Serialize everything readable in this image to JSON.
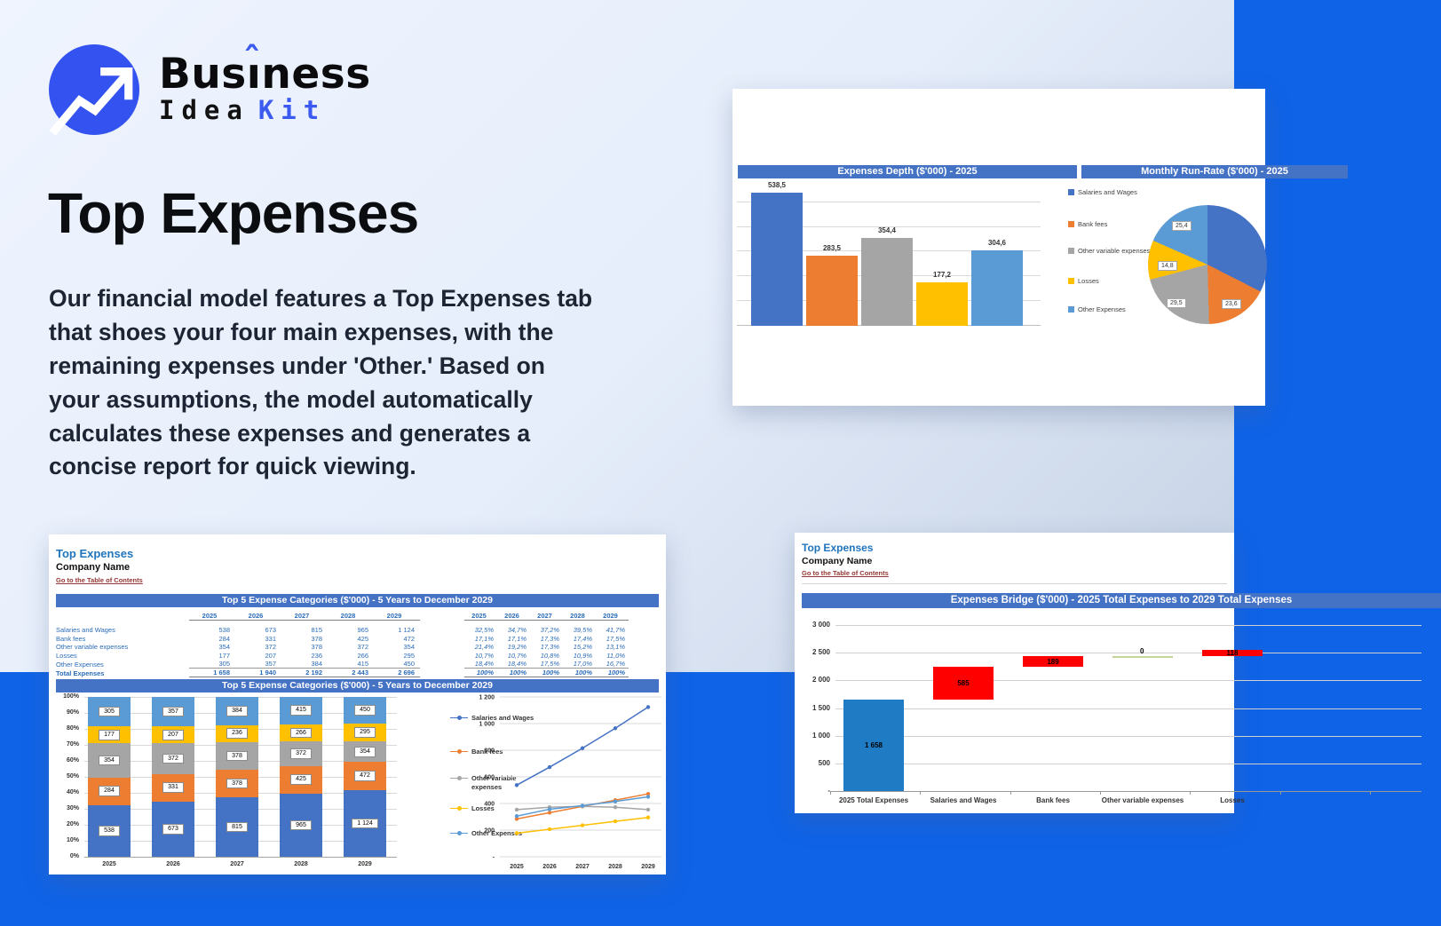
{
  "page": {
    "colors": {
      "accent_blue": "#3352ef",
      "band_blue": "#0f63e7",
      "banner_blue": "#4472C4",
      "link_maroon": "#943634",
      "sheet_title_blue": "#2175bc",
      "series": [
        "#4472C4",
        "#ED7D31",
        "#A5A5A5",
        "#FFC000",
        "#5B9BD5"
      ],
      "waterfall_blue": "#1F7CC4",
      "waterfall_red": "#FF0000",
      "waterfall_green": "#C2D69A"
    }
  },
  "logo": {
    "icon": "trend-up-arrow",
    "name_pre": "Bus",
    "name_i": "ı",
    "name_caret": "ˆ",
    "name_post": "ness",
    "sub_left": "Idea",
    "sub_right": "Kit"
  },
  "hero": {
    "title": "Top Expenses",
    "description_lines": [
      "Our financial model features a Top Expenses tab",
      "that shoes your four main expenses, with the",
      "remaining expenses under 'Other.' Based on",
      "your assumptions, the model automatically",
      "calculates these expenses and generates a",
      "concise report for quick viewing."
    ]
  },
  "depth_card": {
    "bar_title": "Expenses Depth ($'000) - 2025",
    "pie_title": "Monthly Run-Rate ($'000) - 2025",
    "legend": [
      "Salaries and Wages",
      "Bank fees",
      "Other variable expenses",
      "Losses",
      "Other Expenses"
    ]
  },
  "top5_card": {
    "sheet_title": "Top Expenses",
    "company": "Company Name",
    "toc_link": "Go to the Table of Contents",
    "table_banner": "Top 5 Expense Categories ($'000) - 5 Years to December 2029",
    "chart_banner": "Top 5 Expense Categories ($'000) - 5 Years to December 2029",
    "years": [
      "2025",
      "2026",
      "2027",
      "2028",
      "2029"
    ],
    "rows": [
      {
        "label": "Salaries and Wages",
        "values": [
          "538",
          "673",
          "815",
          "965",
          "1 124"
        ],
        "pcts": [
          "32,5%",
          "34,7%",
          "37,2%",
          "39,5%",
          "41,7%"
        ]
      },
      {
        "label": "Bank fees",
        "values": [
          "284",
          "331",
          "378",
          "425",
          "472"
        ],
        "pcts": [
          "17,1%",
          "17,1%",
          "17,3%",
          "17,4%",
          "17,5%"
        ]
      },
      {
        "label": "Other variable expenses",
        "values": [
          "354",
          "372",
          "378",
          "372",
          "354"
        ],
        "pcts": [
          "21,4%",
          "19,2%",
          "17,3%",
          "15,2%",
          "13,1%"
        ]
      },
      {
        "label": "Losses",
        "values": [
          "177",
          "207",
          "236",
          "266",
          "295"
        ],
        "pcts": [
          "10,7%",
          "10,7%",
          "10,8%",
          "10,9%",
          "11,0%"
        ]
      },
      {
        "label": "Other Expenses",
        "values": [
          "305",
          "357",
          "384",
          "415",
          "450"
        ],
        "pcts": [
          "18,4%",
          "18,4%",
          "17,5%",
          "17,0%",
          "16,7%"
        ]
      }
    ],
    "total_row": {
      "label": "Total Expenses",
      "values": [
        "1 658",
        "1 940",
        "2 192",
        "2 443",
        "2 696"
      ],
      "pcts": [
        "100%",
        "100%",
        "100%",
        "100%",
        "100%"
      ]
    }
  },
  "bridge_card": {
    "sheet_title": "Top Expenses",
    "company": "Company Name",
    "toc_link": "Go to the Table of Contents",
    "banner": "Expenses Bridge ($'000) - 2025 Total Expenses to 2029 Total Expenses"
  },
  "chart_data": [
    {
      "id": "expenses_depth_bar",
      "type": "bar",
      "title": "Expenses Depth ($'000) - 2025",
      "categories": [
        "Salaries and Wages",
        "Bank fees",
        "Other variable expenses",
        "Losses",
        "Other Expenses"
      ],
      "values": [
        538.5,
        283.5,
        354.4,
        177.2,
        304.6
      ],
      "labels": [
        "538,5",
        "283,5",
        "354,4",
        "177,2",
        "304,6"
      ],
      "colors": [
        "#4472C4",
        "#ED7D31",
        "#A5A5A5",
        "#FFC000",
        "#5B9BD5"
      ],
      "ylim": [
        0,
        540
      ],
      "gridline_values": [
        100,
        200,
        300,
        400,
        500
      ],
      "legend_position": "right",
      "y_axis_labels": false
    },
    {
      "id": "monthly_run_rate_pie",
      "type": "pie",
      "title": "Monthly Run-Rate ($'000) - 2025",
      "colors": [
        "#4472C4",
        "#ED7D31",
        "#A5A5A5",
        "#FFC000",
        "#5B9BD5"
      ],
      "slices": [
        {
          "name": "Salaries and Wages",
          "value": 44.9,
          "label": ""
        },
        {
          "name": "Bank fees",
          "value": 23.6,
          "label": "23,6"
        },
        {
          "name": "Other variable expenses",
          "value": 29.5,
          "label": "29,5"
        },
        {
          "name": "Losses",
          "value": 14.8,
          "label": "14,8"
        },
        {
          "name": "Other Expenses",
          "value": 25.4,
          "label": "25,4"
        }
      ]
    },
    {
      "id": "top5_stacked_bar",
      "type": "bar",
      "subtype": "stacked-100pct",
      "title": "Top 5 Expense Categories ($'000) - 5 Years to December 2029",
      "categories": [
        "2025",
        "2026",
        "2027",
        "2028",
        "2029"
      ],
      "y_ticks": [
        "100%",
        "90%",
        "80%",
        "70%",
        "60%",
        "50%",
        "40%",
        "30%",
        "20%",
        "10%",
        "0%"
      ],
      "series": [
        {
          "name": "Salaries and Wages",
          "color": "#4472C4",
          "values": [
            538,
            673,
            815,
            965,
            1124
          ],
          "labels": [
            "538",
            "673",
            "815",
            "965",
            "1 124"
          ],
          "pcts": [
            32.5,
            34.7,
            37.2,
            39.5,
            41.7
          ]
        },
        {
          "name": "Bank fees",
          "color": "#ED7D31",
          "values": [
            284,
            331,
            378,
            425,
            472
          ],
          "labels": [
            "284",
            "331",
            "378",
            "425",
            "472"
          ],
          "pcts": [
            17.1,
            17.1,
            17.3,
            17.4,
            17.5
          ]
        },
        {
          "name": "Other variable expenses",
          "color": "#A5A5A5",
          "values": [
            354,
            372,
            378,
            372,
            354
          ],
          "labels": [
            "354",
            "372",
            "378",
            "372",
            "354"
          ],
          "pcts": [
            21.4,
            19.2,
            17.3,
            15.2,
            13.1
          ]
        },
        {
          "name": "Losses",
          "color": "#FFC000",
          "values": [
            177,
            207,
            236,
            266,
            295
          ],
          "labels": [
            "177",
            "207",
            "236",
            "266",
            "295"
          ],
          "pcts": [
            10.7,
            10.7,
            10.8,
            10.9,
            11.0
          ]
        },
        {
          "name": "Other Expenses",
          "color": "#5B9BD5",
          "values": [
            305,
            357,
            384,
            415,
            450
          ],
          "labels": [
            "305",
            "357",
            "384",
            "415",
            "450"
          ],
          "pcts": [
            18.4,
            18.4,
            17.5,
            17.0,
            16.7
          ]
        }
      ]
    },
    {
      "id": "top5_line",
      "type": "line",
      "x": [
        "2025",
        "2026",
        "2027",
        "2028",
        "2029"
      ],
      "ylim": [
        0,
        1200
      ],
      "y_ticks": [
        "1 200",
        "1 000",
        "800",
        "600",
        "400",
        "200",
        "-"
      ],
      "series": [
        {
          "name": "Salaries and Wages",
          "color": "#4472C4",
          "values": [
            538,
            673,
            815,
            965,
            1124
          ]
        },
        {
          "name": "Bank fees",
          "color": "#ED7D31",
          "values": [
            284,
            331,
            378,
            425,
            472
          ]
        },
        {
          "name": "Other variable expenses",
          "color": "#A5A5A5",
          "values": [
            354,
            372,
            378,
            372,
            354
          ]
        },
        {
          "name": "Losses",
          "color": "#FFC000",
          "values": [
            177,
            207,
            236,
            266,
            295
          ]
        },
        {
          "name": "Other Expenses",
          "color": "#5B9BD5",
          "values": [
            305,
            357,
            384,
            415,
            450
          ]
        }
      ]
    },
    {
      "id": "expenses_bridge_waterfall",
      "type": "bar",
      "subtype": "waterfall",
      "title": "Expenses Bridge ($'000) - 2025 Total Expenses to 2029 Total Expenses",
      "categories": [
        "2025 Total Expenses",
        "Salaries and Wages",
        "Bank fees",
        "Other variable expenses",
        "Losses"
      ],
      "ylim": [
        0,
        3000
      ],
      "y_ticks": [
        "3 000",
        "2 500",
        "2 000",
        "1 500",
        "1 000",
        "500",
        "-"
      ],
      "bars": [
        {
          "start": 0,
          "end": 1658,
          "label": "1 658",
          "color": "#1F7CC4"
        },
        {
          "start": 1658,
          "end": 2243,
          "label": "585",
          "color": "#FF0000"
        },
        {
          "start": 2243,
          "end": 2432,
          "label": "189",
          "color": "#FF0000"
        },
        {
          "start": 2432,
          "end": 2432,
          "label": "0",
          "color": "#C2D69A"
        },
        {
          "start": 2432,
          "end": 2550,
          "label": "118",
          "color": "#FF0000"
        }
      ]
    }
  ]
}
